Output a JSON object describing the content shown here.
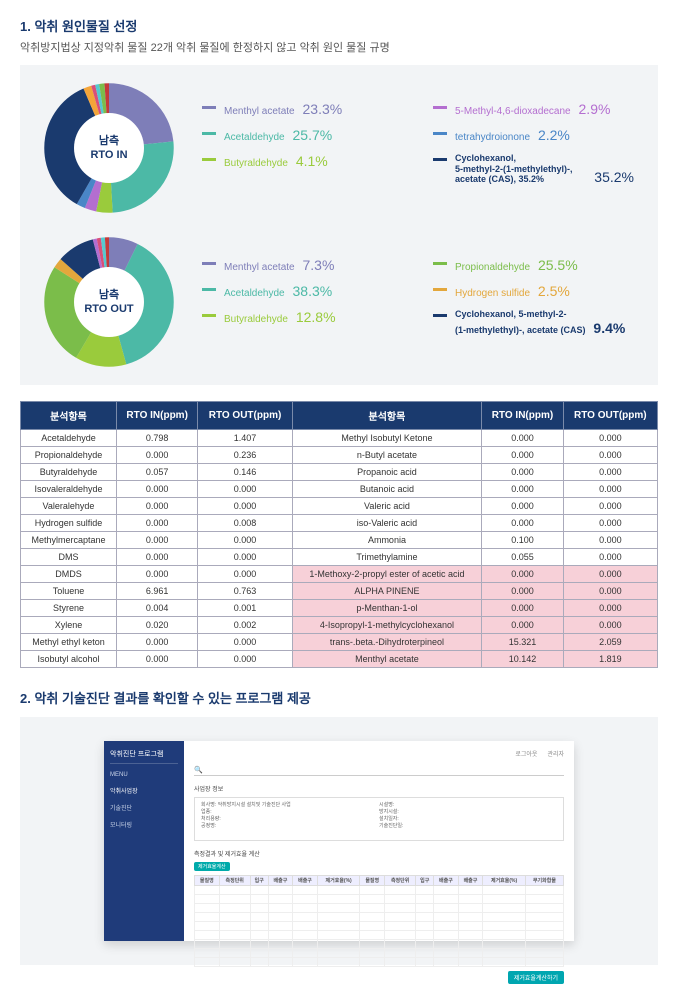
{
  "section1": {
    "title": "1. 악취 원인물질 선정",
    "subtitle": "악취방지법상 지정악취 물질 22개 악취 물질에 한정하지 않고 악취 원인 물질 규명"
  },
  "rto_in": {
    "center_top": "남측",
    "center_bottom": "RTO IN",
    "slices": [
      {
        "color": "#7e7eb8",
        "value": 23.3
      },
      {
        "color": "#4cb9a6",
        "value": 25.7
      },
      {
        "color": "#9acb3c",
        "value": 4.1
      },
      {
        "color": "#b46ed0",
        "value": 2.9
      },
      {
        "color": "#4a86c7",
        "value": 2.2
      },
      {
        "color": "#1a3a6e",
        "value": 35.2
      },
      {
        "color": "#f4a53a",
        "value": 2.0
      },
      {
        "color": "#d94f7a",
        "value": 1.0
      },
      {
        "color": "#55c9d0",
        "value": 1.0
      },
      {
        "color": "#7bbd4a",
        "value": 1.3
      },
      {
        "color": "#c43a3a",
        "value": 1.3
      }
    ],
    "legend_left": [
      {
        "color": "#7e7eb8",
        "label": "Menthyl acetate",
        "value": "23.3%"
      },
      {
        "color": "#4cb9a6",
        "label": "Acetaldehyde",
        "value": "25.7%"
      },
      {
        "color": "#9acb3c",
        "label": "Butyraldehyde",
        "value": "4.1%"
      }
    ],
    "legend_right": [
      {
        "color": "#b46ed0",
        "label": "5-Methyl-4,6-dioxadecane",
        "value": "2.9%"
      },
      {
        "color": "#4a86c7",
        "label": "tetrahydroionone",
        "value": "2.2%"
      },
      {
        "color": "#1a3a6e",
        "label": "Cyclohexanol,",
        "detail": "5-methyl-2-(1-methylethyl)-,",
        "detail2": "acetate (CAS), 35.2%",
        "value": "35.2%"
      }
    ]
  },
  "rto_out": {
    "center_top": "남측",
    "center_bottom": "RTO OUT",
    "slices": [
      {
        "color": "#7e7eb8",
        "value": 7.3
      },
      {
        "color": "#4cb9a6",
        "value": 38.3
      },
      {
        "color": "#9acb3c",
        "value": 12.8
      },
      {
        "color": "#7bbd4a",
        "value": 25.5
      },
      {
        "color": "#e3a73c",
        "value": 2.5
      },
      {
        "color": "#1a3a6e",
        "value": 9.4
      },
      {
        "color": "#b46ed0",
        "value": 1.0
      },
      {
        "color": "#d94f7a",
        "value": 1.0
      },
      {
        "color": "#55c9d0",
        "value": 1.0
      },
      {
        "color": "#c43a3a",
        "value": 1.2
      }
    ],
    "legend_left": [
      {
        "color": "#7e7eb8",
        "label": "Menthyl acetate",
        "value": "7.3%"
      },
      {
        "color": "#4cb9a6",
        "label": "Acetaldehyde",
        "value": "38.3%"
      },
      {
        "color": "#9acb3c",
        "label": "Butyraldehyde",
        "value": "12.8%"
      }
    ],
    "legend_right": [
      {
        "color": "#7bbd4a",
        "label": "Propionaldehyde",
        "value": "25.5%"
      },
      {
        "color": "#e3a73c",
        "label": "Hydrogen sulfide",
        "value": "2.5%"
      },
      {
        "color": "#1a3a6e",
        "label": "Cyclohexanol, 5-methyl-2-",
        "detail": "(1-methylethyl)-, acetate (CAS)",
        "value": "9.4%"
      }
    ]
  },
  "table": {
    "headers": [
      "분석항목",
      "RTO IN(ppm)",
      "RTO OUT(ppm)",
      "분석항목",
      "RTO IN(ppm)",
      "RTO OUT(ppm)"
    ],
    "rows": [
      {
        "l": [
          "Acetaldehyde",
          "0.798",
          "1.407"
        ],
        "r": [
          "Methyl Isobutyl Ketone",
          "0.000",
          "0.000"
        ],
        "pink": false
      },
      {
        "l": [
          "Propionaldehyde",
          "0.000",
          "0.236"
        ],
        "r": [
          "n-Butyl acetate",
          "0.000",
          "0.000"
        ],
        "pink": false
      },
      {
        "l": [
          "Butyraldehyde",
          "0.057",
          "0.146"
        ],
        "r": [
          "Propanoic acid",
          "0.000",
          "0.000"
        ],
        "pink": false
      },
      {
        "l": [
          "Isovaleraldehyde",
          "0.000",
          "0.000"
        ],
        "r": [
          "Butanoic acid",
          "0.000",
          "0.000"
        ],
        "pink": false
      },
      {
        "l": [
          "Valeralehyde",
          "0.000",
          "0.000"
        ],
        "r": [
          "Valeric acid",
          "0.000",
          "0.000"
        ],
        "pink": false
      },
      {
        "l": [
          "Hydrogen sulfide",
          "0.000",
          "0.008"
        ],
        "r": [
          "iso-Valeric acid",
          "0.000",
          "0.000"
        ],
        "pink": false
      },
      {
        "l": [
          "Methylmercaptane",
          "0.000",
          "0.000"
        ],
        "r": [
          "Ammonia",
          "0.100",
          "0.000"
        ],
        "pink": false
      },
      {
        "l": [
          "DMS",
          "0.000",
          "0.000"
        ],
        "r": [
          "Trimethylamine",
          "0.055",
          "0.000"
        ],
        "pink": false
      },
      {
        "l": [
          "DMDS",
          "0.000",
          "0.000"
        ],
        "r": [
          "1-Methoxy-2-propyl ester of acetic acid",
          "0.000",
          "0.000"
        ],
        "pink": true
      },
      {
        "l": [
          "Toluene",
          "6.961",
          "0.763"
        ],
        "r": [
          "ALPHA PINENE",
          "0.000",
          "0.000"
        ],
        "pink": true
      },
      {
        "l": [
          "Styrene",
          "0.004",
          "0.001"
        ],
        "r": [
          "p-Menthan-1-ol",
          "0.000",
          "0.000"
        ],
        "pink": true
      },
      {
        "l": [
          "Xylene",
          "0.020",
          "0.002"
        ],
        "r": [
          "4-Isopropyl-1-methylcyclohexanol",
          "0.000",
          "0.000"
        ],
        "pink": true
      },
      {
        "l": [
          "Methyl ethyl keton",
          "0.000",
          "0.000"
        ],
        "r": [
          "trans-.beta.-Dihydroterpineol",
          "15.321",
          "2.059"
        ],
        "pink": true
      },
      {
        "l": [
          "Isobutyl alcohol",
          "0.000",
          "0.000"
        ],
        "r": [
          "Menthyl acetate",
          "10.142",
          "1.819"
        ],
        "pink": true
      }
    ]
  },
  "section2": {
    "title": "2. 악취 기술진단 결과를 확인할 수 있는 프로그램 제공"
  },
  "mockup": {
    "app_title": "악취진단 프로그램",
    "menu_label": "MENU",
    "menu_items": [
      "악취사업장",
      "기술진단",
      "모니터링"
    ],
    "topbar": [
      "로그아웃",
      "관리자"
    ],
    "info_left": [
      "회사명: 악취방지시설 설치및 기술진단 사업",
      "업종: ",
      "처리용량: ",
      "공정명: "
    ],
    "info_right": [
      "시설명: ",
      "방지시설: ",
      "설치일자: ",
      "기술진단일: "
    ],
    "subhead": "측정결과 및 제거효율 계산",
    "btn": "제거효율계산",
    "cols": [
      "물질명",
      "측정단위",
      "입구",
      "배출구",
      "배출구",
      "제거효율(%)",
      "물질명",
      "측정단위",
      "입구",
      "배출구",
      "배출구",
      "제거효율(%)",
      "무기화합물"
    ],
    "bodyrows": 9,
    "footer_btn": "제거효율계산하기"
  }
}
